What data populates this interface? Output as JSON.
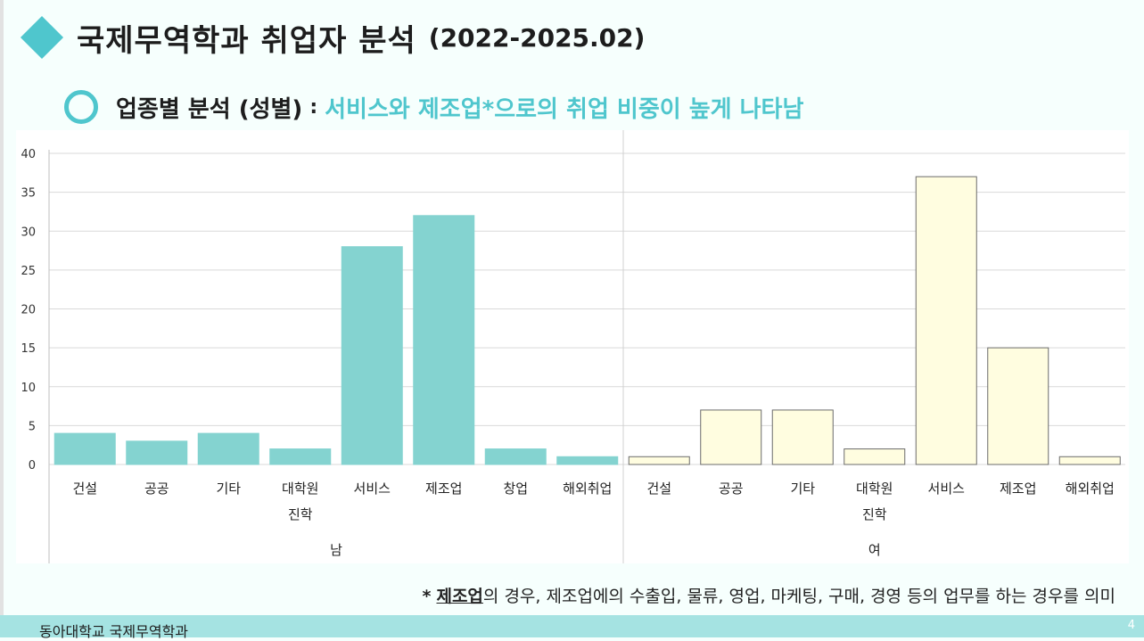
{
  "header": {
    "title": "국제무역학과 취업자 분석",
    "period": "(2022-2025.02)"
  },
  "subheader": {
    "label": "업종별 분석 (성별)",
    "separator": ":",
    "highlight": "서비스와 제조업*으로의 취업 비중이 높게 나타남"
  },
  "chart_data": {
    "type": "bar",
    "ylim": [
      0,
      40
    ],
    "yticks": [
      0,
      5,
      10,
      15,
      20,
      25,
      30,
      35,
      40
    ],
    "grid": true,
    "groups": [
      {
        "name": "남",
        "color": "#84d3d0",
        "stroke": "#84d3d0",
        "categories": [
          "건설",
          "공공",
          "기타",
          "대학원 진학",
          "서비스",
          "제조업",
          "창업",
          "해외취업"
        ],
        "values": [
          4,
          3,
          4,
          2,
          28,
          32,
          2,
          1
        ]
      },
      {
        "name": "여",
        "color": "#fffde0",
        "stroke": "#6b6b6b",
        "categories": [
          "건설",
          "공공",
          "기타",
          "대학원 진학",
          "서비스",
          "제조업",
          "해외취업"
        ],
        "values": [
          1,
          7,
          7,
          2,
          37,
          15,
          1
        ]
      }
    ]
  },
  "note": {
    "star": "*",
    "term": "제조업",
    "text": "의 경우, 제조업에의 수출입, 물류, 영업, 마케팅, 구매, 경영 등의 업무를 하는 경우를 의미"
  },
  "footer": {
    "university": "동아대학교 국제무역학과",
    "page": "4"
  }
}
